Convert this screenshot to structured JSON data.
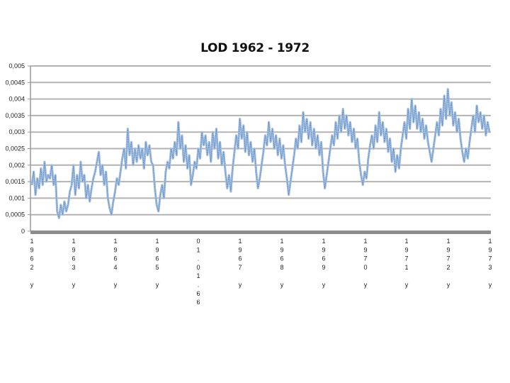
{
  "chart_data": {
    "type": "line",
    "title": "LOD 1962 - 1972",
    "xlabel": "",
    "ylabel": "",
    "ylim": [
      0,
      0.005
    ],
    "yticks": [
      "0",
      "0,0005",
      "0,001",
      "0,0015",
      "0,002",
      "0,0025",
      "0,003",
      "0,0035",
      "0,004",
      "0,0045",
      "0,005"
    ],
    "xtick_labels": [
      "1962y",
      "1963y",
      "1964y",
      "1965y",
      "01.01.66",
      "1967y",
      "1968y",
      "1969y",
      "1970y",
      "1971y",
      "1972y",
      "1973y"
    ],
    "grid": true,
    "legend": "none",
    "line_color": "#4f81bd",
    "fill_color": "#a6c0e0",
    "series": [
      {
        "name": "LOD",
        "x_start": 1962.0,
        "x_end": 1973.0,
        "values": [
          0.0014,
          0.0018,
          0.0011,
          0.0016,
          0.0013,
          0.0019,
          0.0014,
          0.0021,
          0.0015,
          0.0017,
          0.0016,
          0.002,
          0.0014,
          0.0017,
          0.0006,
          0.0004,
          0.0008,
          0.0005,
          0.0009,
          0.0006,
          0.0008,
          0.0012,
          0.0014,
          0.002,
          0.0011,
          0.0017,
          0.0013,
          0.0021,
          0.0015,
          0.0017,
          0.001,
          0.0014,
          0.0009,
          0.0013,
          0.0016,
          0.0018,
          0.0021,
          0.0024,
          0.0017,
          0.002,
          0.0014,
          0.0018,
          0.001,
          0.0007,
          0.0005,
          0.0009,
          0.0012,
          0.0016,
          0.0014,
          0.0018,
          0.0022,
          0.0025,
          0.0019,
          0.0031,
          0.0023,
          0.0027,
          0.002,
          0.0025,
          0.0021,
          0.0026,
          0.0022,
          0.0025,
          0.0019,
          0.0027,
          0.0023,
          0.0026,
          0.0021,
          0.002,
          0.0013,
          0.0008,
          0.0006,
          0.0011,
          0.0014,
          0.001,
          0.0018,
          0.0021,
          0.0019,
          0.0025,
          0.0022,
          0.0027,
          0.0023,
          0.0033,
          0.0025,
          0.0029,
          0.0021,
          0.0026,
          0.0019,
          0.0023,
          0.0014,
          0.0017,
          0.0021,
          0.0019,
          0.0025,
          0.0022,
          0.003,
          0.0026,
          0.0029,
          0.0023,
          0.0027,
          0.0021,
          0.003,
          0.0025,
          0.0031,
          0.0022,
          0.0027,
          0.002,
          0.0024,
          0.0018,
          0.0013,
          0.0017,
          0.0012,
          0.0019,
          0.0024,
          0.0029,
          0.0025,
          0.0034,
          0.0028,
          0.0032,
          0.0024,
          0.003,
          0.0023,
          0.0027,
          0.0021,
          0.0025,
          0.0018,
          0.0013,
          0.0016,
          0.002,
          0.0024,
          0.0029,
          0.0026,
          0.0033,
          0.0027,
          0.0031,
          0.0025,
          0.0029,
          0.0023,
          0.0028,
          0.0022,
          0.0026,
          0.002,
          0.0016,
          0.0011,
          0.0015,
          0.0019,
          0.0023,
          0.0028,
          0.0025,
          0.0032,
          0.0027,
          0.0036,
          0.003,
          0.0034,
          0.0028,
          0.0033,
          0.0026,
          0.0031,
          0.0025,
          0.0029,
          0.0023,
          0.0027,
          0.0018,
          0.0013,
          0.0017,
          0.0021,
          0.0025,
          0.0029,
          0.0026,
          0.0033,
          0.0028,
          0.0035,
          0.003,
          0.0037,
          0.0031,
          0.0035,
          0.0029,
          0.0033,
          0.0027,
          0.0031,
          0.0025,
          0.0028,
          0.0021,
          0.0017,
          0.0014,
          0.0018,
          0.0016,
          0.0022,
          0.0026,
          0.0029,
          0.0025,
          0.0032,
          0.0027,
          0.0036,
          0.0029,
          0.0033,
          0.0027,
          0.0031,
          0.0024,
          0.0028,
          0.0021,
          0.0025,
          0.0018,
          0.0023,
          0.0019,
          0.0025,
          0.0029,
          0.0033,
          0.0028,
          0.0037,
          0.0031,
          0.004,
          0.0033,
          0.0038,
          0.0031,
          0.0036,
          0.003,
          0.0034,
          0.0028,
          0.0032,
          0.0027,
          0.0024,
          0.0021,
          0.0025,
          0.0029,
          0.0033,
          0.0029,
          0.0037,
          0.0032,
          0.0041,
          0.0034,
          0.0043,
          0.0035,
          0.0039,
          0.0032,
          0.0036,
          0.003,
          0.0034,
          0.0028,
          0.0024,
          0.0021,
          0.0025,
          0.0022,
          0.0027,
          0.0031,
          0.0035,
          0.003,
          0.0038,
          0.0033,
          0.0036,
          0.0031,
          0.0035,
          0.0029,
          0.0033,
          0.003
        ]
      }
    ]
  }
}
